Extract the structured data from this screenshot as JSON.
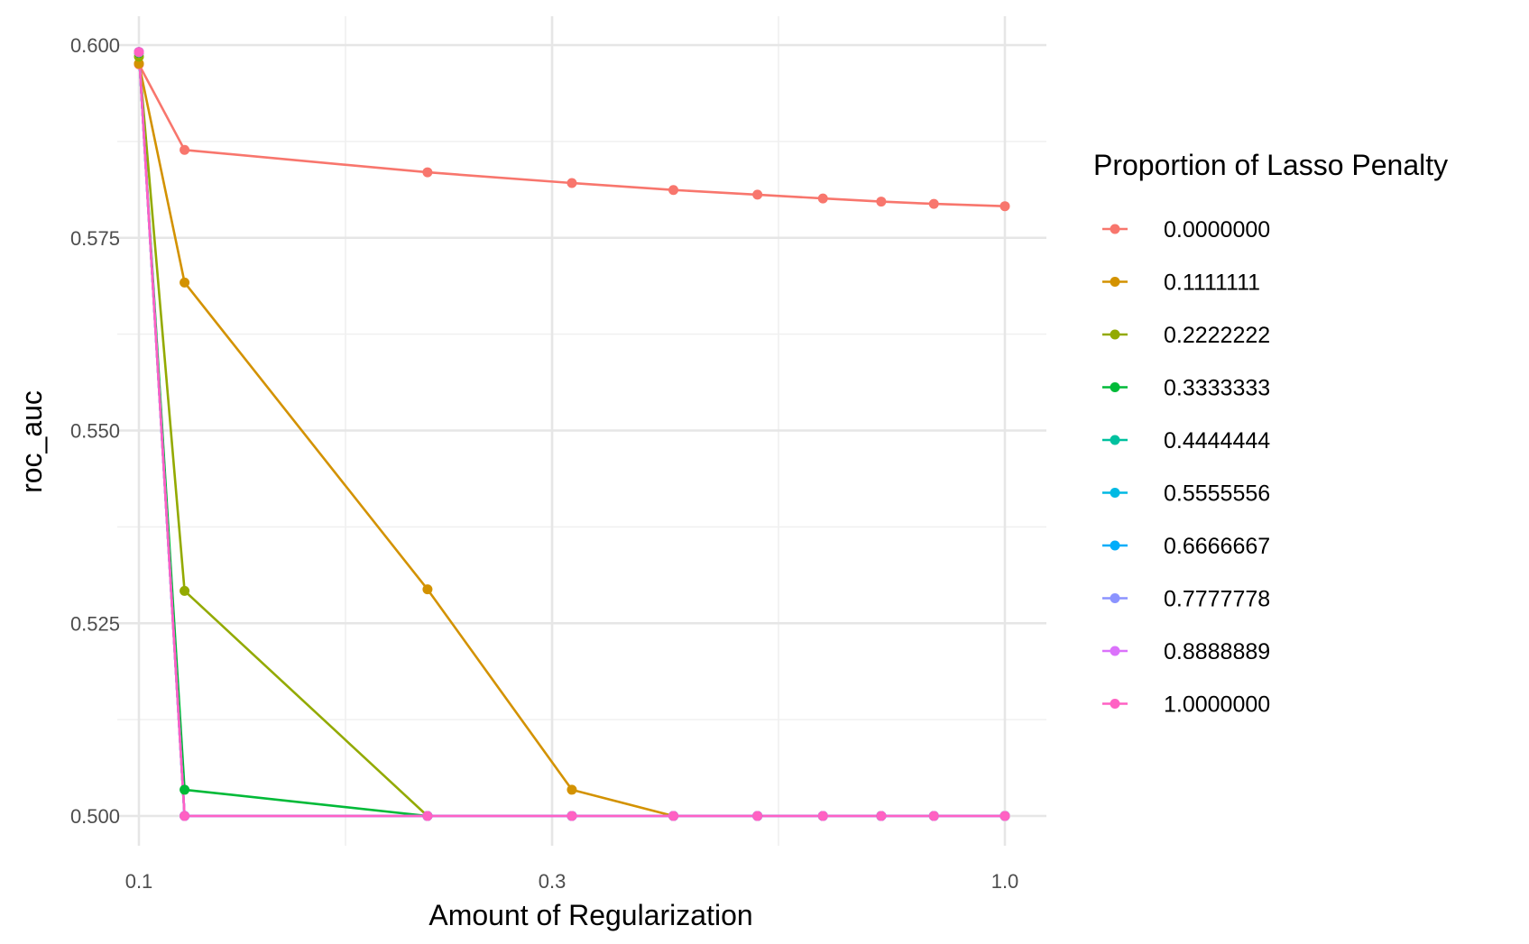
{
  "chart_data": {
    "type": "line",
    "xlabel": "Amount of Regularization",
    "ylabel": "roc_auc",
    "x_scale": "log10",
    "xlim": [
      0.1,
      1.0
    ],
    "ylim": [
      0.5,
      0.6
    ],
    "x_ticks": [
      "0.1",
      "0.3",
      "1.0"
    ],
    "y_ticks": [
      "0.500",
      "0.525",
      "0.550",
      "0.575",
      "0.600"
    ],
    "grid": true,
    "legend": {
      "title": "Proportion of Lasso Penalty",
      "position": "right"
    },
    "x": [
      0.1,
      0.1129,
      0.2154,
      0.3162,
      0.4142,
      0.5179,
      0.6164,
      0.7197,
      0.8279,
      1.0
    ],
    "series": [
      {
        "name": "0.0000000",
        "color": "#F8766D",
        "values": [
          0.5975,
          0.5864,
          0.5835,
          0.5821,
          0.5812,
          0.5806,
          0.5801,
          0.5797,
          0.5794,
          0.5791
        ]
      },
      {
        "name": "0.1111111",
        "color": "#D39200",
        "values": [
          0.5976,
          0.5692,
          0.5294,
          0.5034,
          0.5,
          0.5,
          0.5,
          0.5,
          0.5,
          0.5
        ]
      },
      {
        "name": "0.2222222",
        "color": "#93AA00",
        "values": [
          0.5985,
          0.5292,
          0.5,
          0.5,
          0.5,
          0.5,
          0.5,
          0.5,
          0.5,
          0.5
        ]
      },
      {
        "name": "0.3333333",
        "color": "#00BA38",
        "values": [
          0.599,
          0.5034,
          0.5,
          0.5,
          0.5,
          0.5,
          0.5,
          0.5,
          0.5,
          0.5
        ]
      },
      {
        "name": "0.4444444",
        "color": "#00C19F",
        "values": [
          0.5991,
          0.5,
          0.5,
          0.5,
          0.5,
          0.5,
          0.5,
          0.5,
          0.5,
          0.5
        ]
      },
      {
        "name": "0.5555556",
        "color": "#00B9E3",
        "values": [
          0.5991,
          0.5,
          0.5,
          0.5,
          0.5,
          0.5,
          0.5,
          0.5,
          0.5,
          0.5
        ]
      },
      {
        "name": "0.6666667",
        "color": "#00ADFA",
        "values": [
          0.5991,
          0.5,
          0.5,
          0.5,
          0.5,
          0.5,
          0.5,
          0.5,
          0.5,
          0.5
        ]
      },
      {
        "name": "0.7777778",
        "color": "#8B93FF",
        "values": [
          0.5991,
          0.5,
          0.5,
          0.5,
          0.5,
          0.5,
          0.5,
          0.5,
          0.5,
          0.5
        ]
      },
      {
        "name": "0.8888889",
        "color": "#DB72FB",
        "values": [
          0.5991,
          0.5,
          0.5,
          0.5,
          0.5,
          0.5,
          0.5,
          0.5,
          0.5,
          0.5
        ]
      },
      {
        "name": "1.0000000",
        "color": "#FF61C3",
        "values": [
          0.5991,
          0.5,
          0.5,
          0.5,
          0.5,
          0.5,
          0.5,
          0.5,
          0.5,
          0.5
        ]
      }
    ]
  }
}
